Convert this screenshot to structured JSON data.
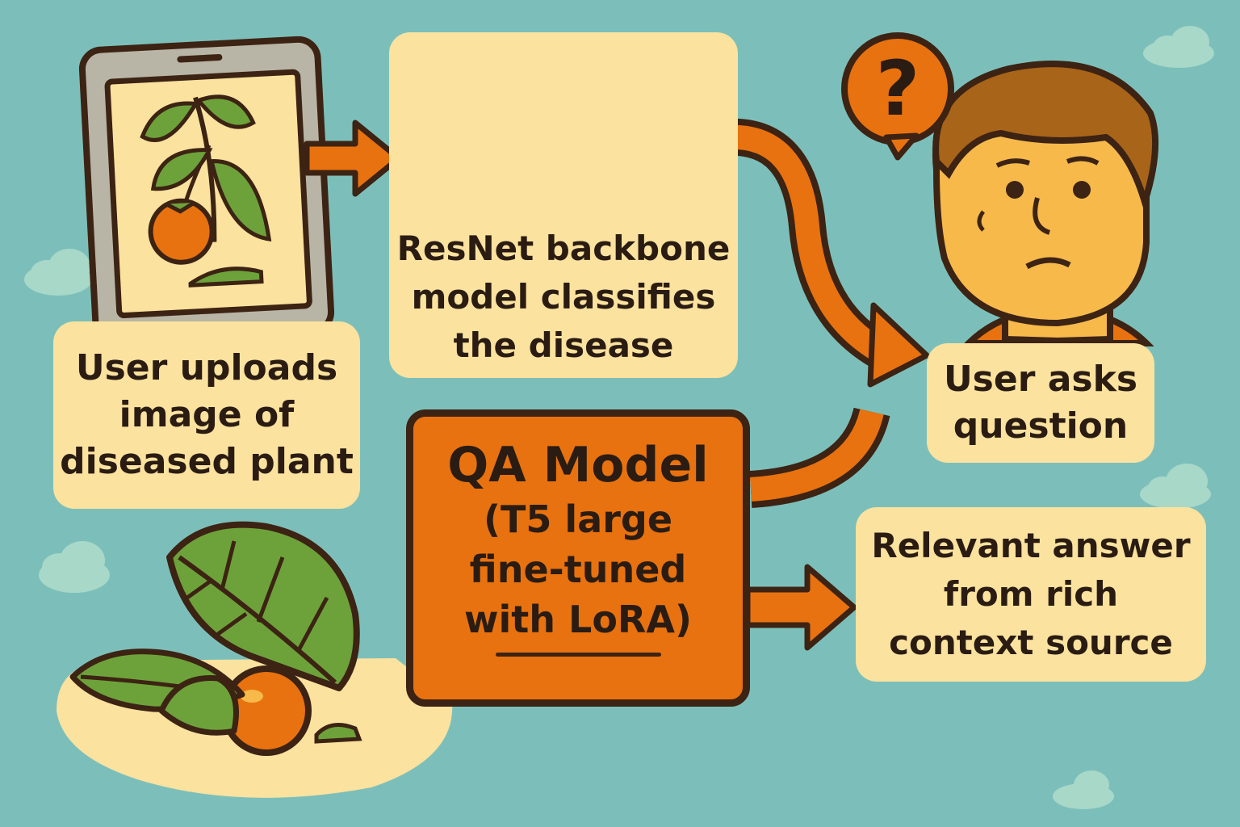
{
  "colors": {
    "background": "#7cbfba",
    "box_fill": "#fbe29e",
    "accent_orange": "#e8720f",
    "outline": "#3c2313",
    "leaf_green": "#6da23a",
    "text": "#2a1c12"
  },
  "icons": [
    "tablet-icon",
    "plant-icon",
    "leaf-icon",
    "tomato-icon",
    "confused-person-icon",
    "question-mark-icon",
    "cloud-icon",
    "arrow-icon"
  ],
  "steps": {
    "upload": "User uploads image of diseased plant",
    "upload_lines": [
      "User uploads",
      "image of",
      "diseased plant"
    ],
    "resnet": "ResNet backbone model classifies the disease",
    "resnet_lines": [
      "ResNet backbone",
      "model classifies",
      "the disease"
    ],
    "qa_title": "QA Model",
    "qa_lines": [
      "(T5 large",
      "fine-tuned",
      "with LoRA)"
    ],
    "ask_lines": [
      "User asks",
      "question"
    ],
    "answer_lines": [
      "Relevant answer",
      "from rich",
      "context source"
    ]
  },
  "question_mark": "?"
}
